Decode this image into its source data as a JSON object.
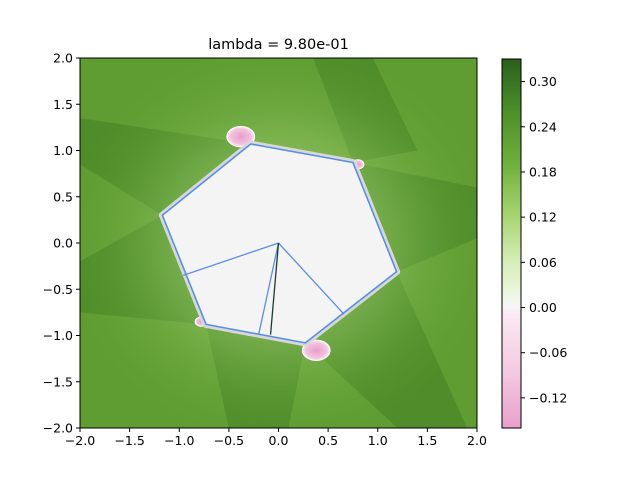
{
  "chart_data": {
    "type": "heatmap",
    "title": "lambda = 9.80e-01",
    "xlabel": "",
    "ylabel": "",
    "xlim": [
      -2.0,
      2.0
    ],
    "ylim": [
      -2.0,
      2.0
    ],
    "x_ticks": [
      "−2.0",
      "−1.5",
      "−1.0",
      "−0.5",
      "0.0",
      "0.5",
      "1.0",
      "1.5",
      "2.0"
    ],
    "y_ticks": [
      "2.0",
      "1.5",
      "1.0",
      "0.5",
      "0.0",
      "−0.5",
      "−1.0",
      "−1.5",
      "−2.0"
    ],
    "colorbar": {
      "range": [
        -0.16,
        0.33
      ],
      "ticks": [
        "0.30",
        "0.24",
        "0.18",
        "0.12",
        "0.06",
        "0.00",
        "−0.06",
        "−0.12"
      ],
      "tick_values": [
        0.3,
        0.24,
        0.18,
        0.12,
        0.06,
        0.0,
        -0.06,
        -0.12
      ],
      "colormap": "PiYG"
    },
    "polygon": {
      "vertices": [
        [
          -0.28,
          1.07
        ],
        [
          0.75,
          0.87
        ],
        [
          1.19,
          -0.31
        ],
        [
          0.27,
          -1.08
        ],
        [
          -0.73,
          -0.88
        ],
        [
          -1.17,
          0.3
        ]
      ],
      "edge_color": "#5b8ee6",
      "fill_color": "#f4f4f4"
    },
    "inner_lines": [
      {
        "from": [
          0.0,
          0.0
        ],
        "to": [
          -0.96,
          -0.35
        ],
        "color": "#5b8ee6"
      },
      {
        "from": [
          0.0,
          0.0
        ],
        "to": [
          -0.2,
          -0.99
        ],
        "color": "#5b8ee6"
      },
      {
        "from": [
          0.0,
          0.0
        ],
        "to": [
          0.66,
          -0.77
        ],
        "color": "#5b8ee6"
      },
      {
        "from": [
          0.0,
          0.0
        ],
        "to": [
          -0.08,
          -0.99
        ],
        "color": "#1a3d2b"
      }
    ],
    "negative_lobes": [
      {
        "center": [
          -0.38,
          1.15
        ],
        "rx": 0.14,
        "ry": 0.11
      },
      {
        "center": [
          0.38,
          -1.16
        ],
        "rx": 0.14,
        "ry": 0.11
      },
      {
        "center": [
          -0.78,
          -0.85
        ],
        "rx": 0.06,
        "ry": 0.05
      },
      {
        "center": [
          0.8,
          0.85
        ],
        "rx": 0.06,
        "ry": 0.05
      }
    ]
  }
}
